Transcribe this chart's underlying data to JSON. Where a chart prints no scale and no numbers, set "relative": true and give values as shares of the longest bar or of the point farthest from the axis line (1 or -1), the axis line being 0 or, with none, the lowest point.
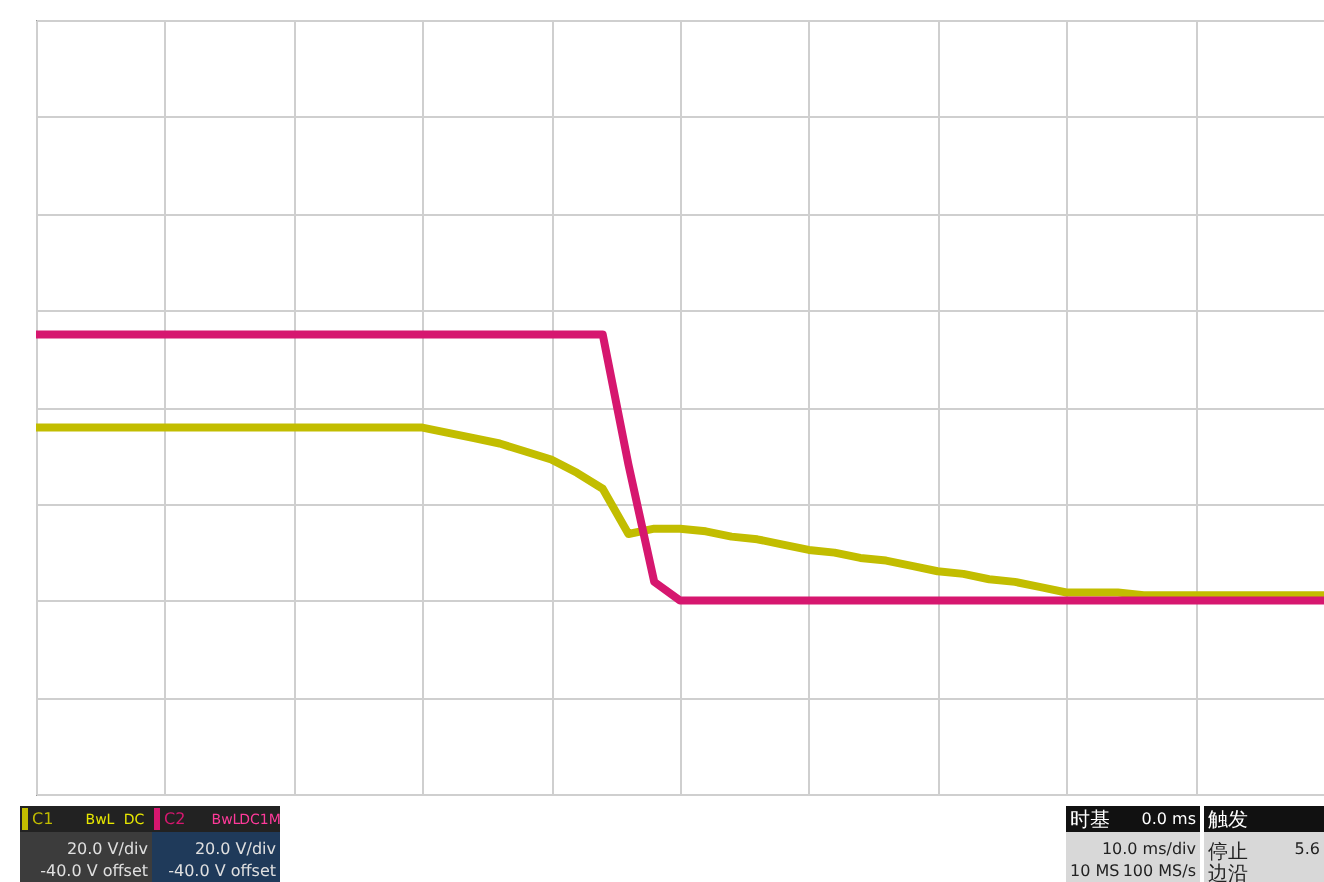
{
  "chart_data": {
    "type": "line",
    "relative": true,
    "grid": true,
    "legend": "bottom",
    "categories": [
      null,
      null,
      null,
      null,
      null,
      null,
      null,
      null,
      null,
      null,
      null,
      null,
      null,
      null,
      null,
      null,
      null,
      null,
      null,
      null,
      null,
      null,
      null,
      null,
      null,
      null,
      null,
      null,
      null,
      null,
      null,
      null,
      null,
      null,
      null,
      null,
      null,
      null,
      null,
      null,
      null,
      null,
      null,
      null,
      null,
      null,
      null,
      null,
      null,
      null,
      null
    ],
    "series": [
      {
        "name": "C1",
        "color": "#c2bd00",
        "values": [
          0.65,
          0.65,
          0.65,
          0.65,
          0.65,
          0.65,
          0.65,
          0.65,
          0.65,
          0.65,
          0.65,
          0.65,
          0.65,
          0.65,
          0.65,
          0.65,
          0.63,
          0.61,
          0.59,
          0.56,
          0.53,
          0.48,
          0.42,
          0.25,
          0.27,
          0.27,
          0.26,
          0.24,
          0.23,
          0.21,
          0.19,
          0.18,
          0.16,
          0.15,
          0.13,
          0.11,
          0.1,
          0.08,
          0.07,
          0.05,
          0.03,
          0.03,
          0.03,
          0.02,
          0.02,
          0.02,
          0.02,
          0.02,
          0.02,
          0.02,
          0.02
        ]
      },
      {
        "name": "C2",
        "color": "#d6176f",
        "values": [
          1,
          1,
          1,
          1,
          1,
          1,
          1,
          1,
          1,
          1,
          1,
          1,
          1,
          1,
          1,
          1,
          1,
          1,
          1,
          1,
          1,
          1,
          1,
          0.51,
          0.07,
          0,
          0,
          0,
          0,
          0,
          0,
          0,
          0,
          0,
          0,
          0,
          0,
          0,
          0,
          0,
          0,
          0,
          0,
          0,
          0,
          0,
          0,
          0,
          0,
          0,
          0
        ]
      }
    ],
    "annotations": [
      "BwL",
      "DC",
      "20.0 V/div",
      "-40.0 V offset",
      "BwL",
      "DC1M",
      "20.0 V/div",
      "-40.0 V offset",
      "时基",
      "0.0 ms",
      "10.0 ms/div",
      "10 MS",
      "100 MS/s",
      "触发",
      "停止",
      "5.6",
      "边沿"
    ]
  }
}
